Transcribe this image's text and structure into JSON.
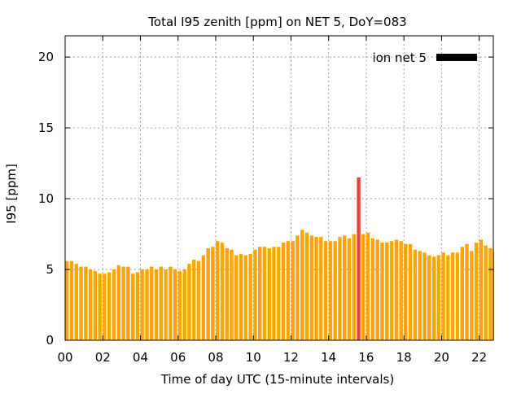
{
  "chart_data": {
    "type": "bar",
    "title": "Total I95 zenith [ppm] on NET 5, DoY=083",
    "xlabel": "Time of day UTC (15-minute intervals)",
    "ylabel": "I95 [ppm]",
    "xlim": [
      0,
      22.75
    ],
    "ylim": [
      0,
      21.5
    ],
    "xticks": [
      0,
      2,
      4,
      6,
      8,
      10,
      12,
      14,
      16,
      18,
      20,
      22
    ],
    "xtick_labels": [
      "00",
      "02",
      "04",
      "06",
      "08",
      "10",
      "12",
      "14",
      "16",
      "18",
      "20",
      "22"
    ],
    "yticks": [
      0,
      5,
      10,
      15,
      20
    ],
    "ytick_labels": [
      "0",
      "5",
      "10",
      "15",
      "20"
    ],
    "grid": true,
    "legend": {
      "position": "top-right",
      "label": "ion net 5",
      "color": "#000000"
    },
    "bar_color": "#ffa500",
    "highlight_color": "#e8443c",
    "highlight_index": 62,
    "bar_width_hours": 0.19,
    "interval_hours": 0.25,
    "values": [
      5.6,
      5.6,
      5.4,
      5.2,
      5.2,
      5.0,
      4.9,
      4.7,
      4.7,
      4.8,
      5.0,
      5.3,
      5.2,
      5.2,
      4.7,
      4.8,
      5.0,
      5.0,
      5.2,
      5.0,
      5.2,
      5.0,
      5.2,
      5.0,
      4.9,
      5.0,
      5.4,
      5.7,
      5.6,
      6.0,
      6.5,
      6.6,
      7.0,
      6.9,
      6.5,
      6.4,
      6.0,
      6.1,
      6.0,
      6.1,
      6.4,
      6.6,
      6.6,
      6.5,
      6.6,
      6.6,
      6.9,
      7.0,
      7.0,
      7.4,
      7.8,
      7.6,
      7.4,
      7.3,
      7.3,
      7.0,
      7.0,
      7.0,
      7.3,
      7.4,
      7.2,
      7.5,
      11.5,
      7.5,
      7.6,
      7.2,
      7.1,
      6.9,
      6.9,
      7.0,
      7.1,
      7.0,
      6.8,
      6.8,
      6.4,
      6.3,
      6.2,
      6.0,
      5.9,
      6.0,
      6.2,
      6.0,
      6.2,
      6.2,
      6.6,
      6.8,
      6.3,
      6.9,
      7.1,
      6.7,
      6.5,
      6.3
    ]
  }
}
